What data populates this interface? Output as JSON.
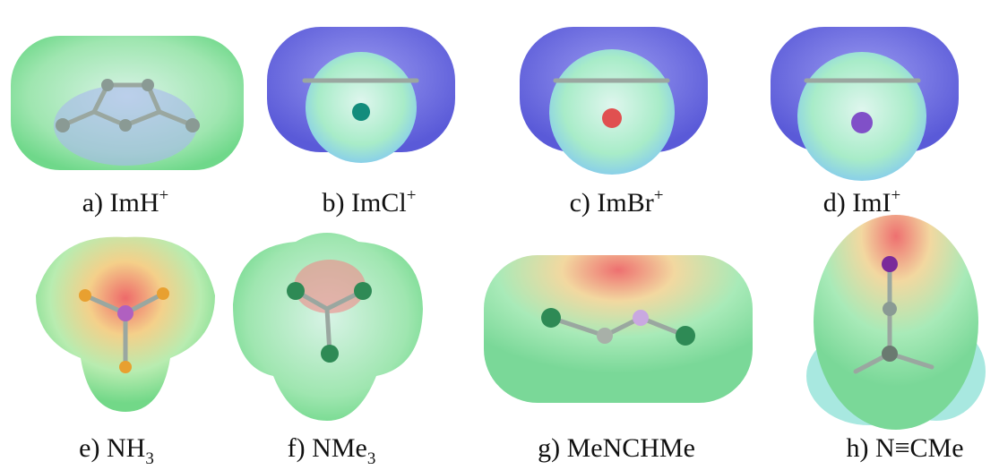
{
  "panels": [
    {
      "letter": "a)",
      "name": "ImH",
      "sup": "+"
    },
    {
      "letter": "b)",
      "name": "ImCl",
      "sup": "+"
    },
    {
      "letter": "c)",
      "name": "ImBr",
      "sup": "+"
    },
    {
      "letter": "d)",
      "name": "ImI",
      "sup": "+"
    },
    {
      "letter": "e)",
      "name": "NH",
      "sub": "3"
    },
    {
      "letter": "f)",
      "name": "NMe",
      "sub": "3"
    },
    {
      "letter": "g)",
      "name": "MeNCHMe"
    },
    {
      "letter": "h)",
      "name": "N≡CMe"
    }
  ]
}
